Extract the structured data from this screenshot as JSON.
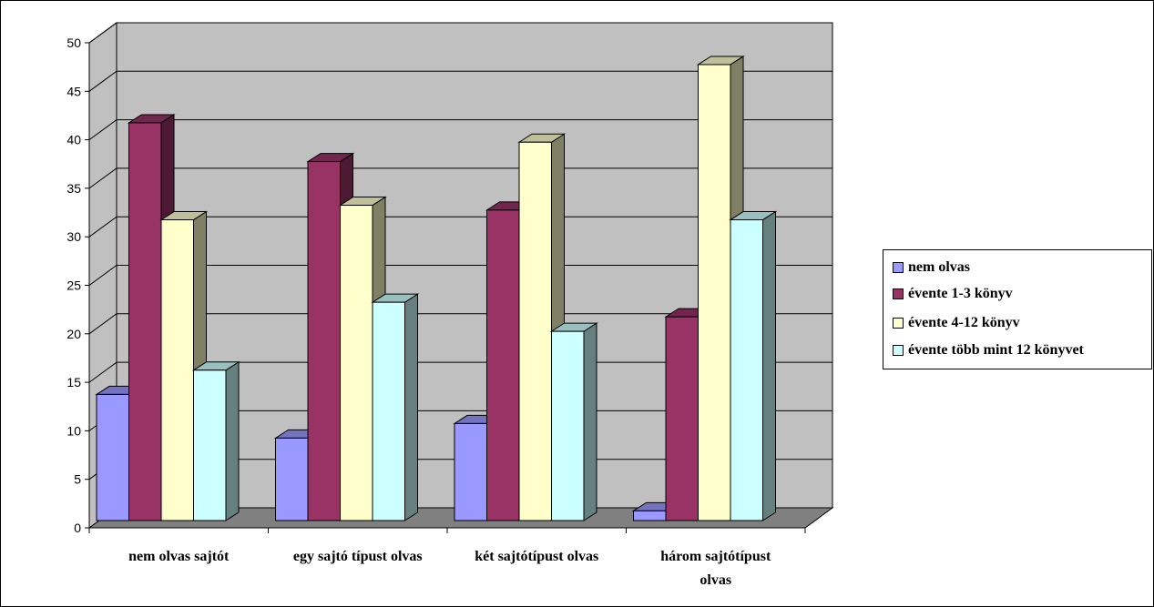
{
  "chart_data": {
    "type": "bar",
    "categories": [
      "nem olvas sajtót",
      "egy sajtó típust olvas",
      "két sajtótípust olvas",
      "három sajtótípust olvas"
    ],
    "category_lines": [
      [
        "nem olvas sajtót"
      ],
      [
        "egy sajtó típust olvas"
      ],
      [
        "két sajtótípust olvas"
      ],
      [
        "három sajtótípust",
        "olvas"
      ]
    ],
    "series": [
      {
        "name": "nem olvas",
        "values": [
          13,
          8.5,
          10,
          1
        ],
        "color": "#9999ff"
      },
      {
        "name": "évente 1-3 könyv",
        "values": [
          41,
          37,
          32,
          21
        ],
        "color": "#993366"
      },
      {
        "name": "évente 4-12 könyv",
        "values": [
          31,
          32.5,
          39,
          47
        ],
        "color": "#ffffcc"
      },
      {
        "name": "évente több mint 12 könyvet",
        "values": [
          15.5,
          22.5,
          19.5,
          31
        ],
        "color": "#ccffff"
      }
    ],
    "yticks": [
      "0",
      "5",
      "10",
      "15",
      "20",
      "25",
      "30",
      "35",
      "40",
      "45",
      "50"
    ],
    "ylim": [
      0,
      50
    ],
    "grid": true,
    "legend_position": "right",
    "wall_color": "#c0c0c0",
    "floor_color": "#808080"
  }
}
